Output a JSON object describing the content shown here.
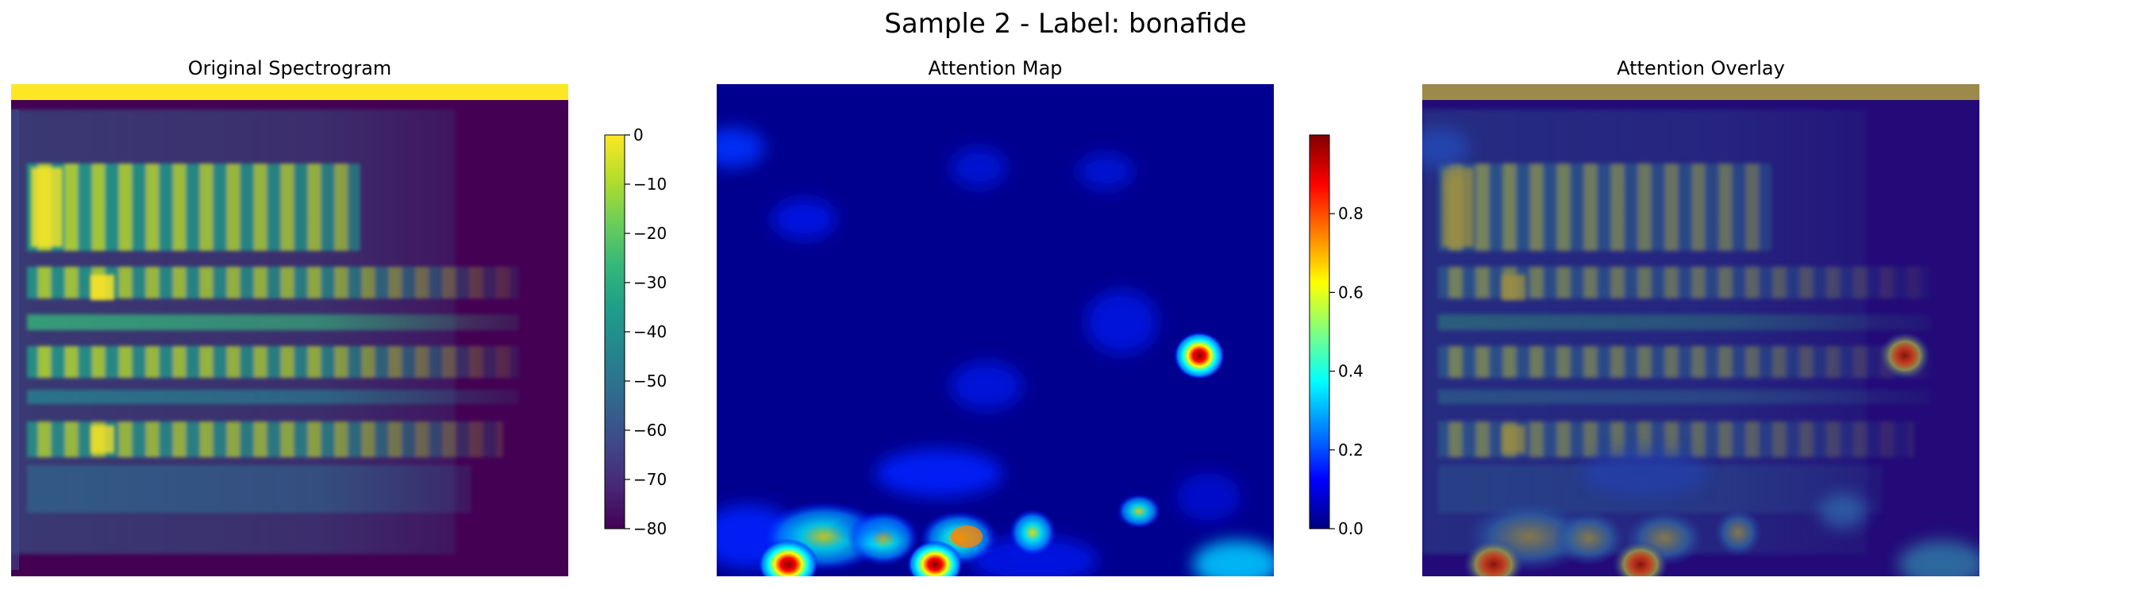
{
  "figure": {
    "title": "Sample 2 - Label: bonafide"
  },
  "colors": {
    "viridis": [
      "#440154",
      "#482878",
      "#3e4989",
      "#31688e",
      "#26828e",
      "#1f9e89",
      "#35b779",
      "#6ece58",
      "#b5de2b",
      "#fde725"
    ],
    "jet": [
      "#00007f",
      "#0000ff",
      "#007fff",
      "#00ffff",
      "#7fff7f",
      "#ffff00",
      "#ff7f00",
      "#ff0000",
      "#7f0000"
    ],
    "spectrogram_background": "#440154",
    "attention_background": "#00008f",
    "overlay_top_band": "#9b8a4a"
  },
  "chart_data": [
    {
      "type": "heatmap",
      "title": "Original Spectrogram",
      "colormap": "viridis",
      "colorbar": {
        "range": [
          -80,
          0
        ],
        "ticks": [
          "0",
          "−10",
          "−20",
          "−30",
          "−40",
          "−50",
          "−60",
          "−70",
          "−80"
        ],
        "values": [
          0,
          -10,
          -20,
          -30,
          -40,
          -50,
          -60,
          -70,
          -80
        ]
      },
      "axes": "off"
    },
    {
      "type": "heatmap",
      "title": "Attention Map",
      "colormap": "jet",
      "colorbar": {
        "range": [
          0,
          1
        ],
        "ticks": [
          "0.0",
          "0.2",
          "0.4",
          "0.6",
          "0.8"
        ],
        "values": [
          0,
          0.2,
          0.4,
          0.6,
          0.8
        ]
      },
      "axes": "off"
    },
    {
      "type": "heatmap",
      "title": "Attention Overlay",
      "colormap": "viridis+jet overlay",
      "axes": "off"
    }
  ]
}
